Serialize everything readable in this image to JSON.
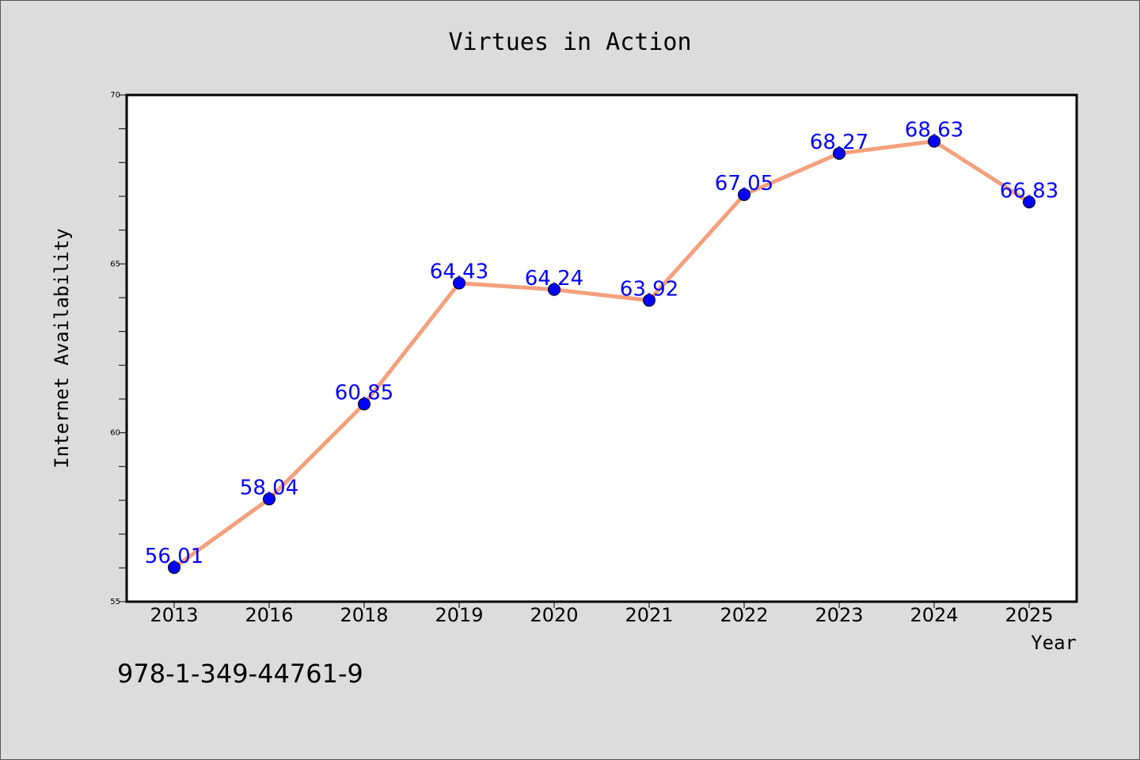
{
  "colors": {
    "background": "#dcdcdc",
    "line": "#f4a07c",
    "marker": "#0000ff",
    "data_label": "#0000ff"
  },
  "chart_data": {
    "type": "line",
    "title": "Virtues in Action",
    "xlabel": "Year",
    "ylabel": "Internet Availability",
    "categories": [
      "2013",
      "2016",
      "2018",
      "2019",
      "2020",
      "2021",
      "2022",
      "2023",
      "2024",
      "2025"
    ],
    "series": [
      {
        "values": [
          56.01,
          58.04,
          60.85,
          64.43,
          64.24,
          63.92,
          67.05,
          68.27,
          68.63,
          66.83
        ]
      }
    ],
    "data_labels": [
      "56.01",
      "58.04",
      "60.85",
      "64.43",
      "64.24",
      "63.92",
      "67.05",
      "68.27",
      "68.63",
      "66.83"
    ],
    "ylim": [
      55,
      70
    ],
    "yticks": [
      "55",
      "60",
      "65",
      "70"
    ],
    "grid": false,
    "legend": "none"
  },
  "footer": {
    "isbn": "978-1-349-44761-9"
  }
}
